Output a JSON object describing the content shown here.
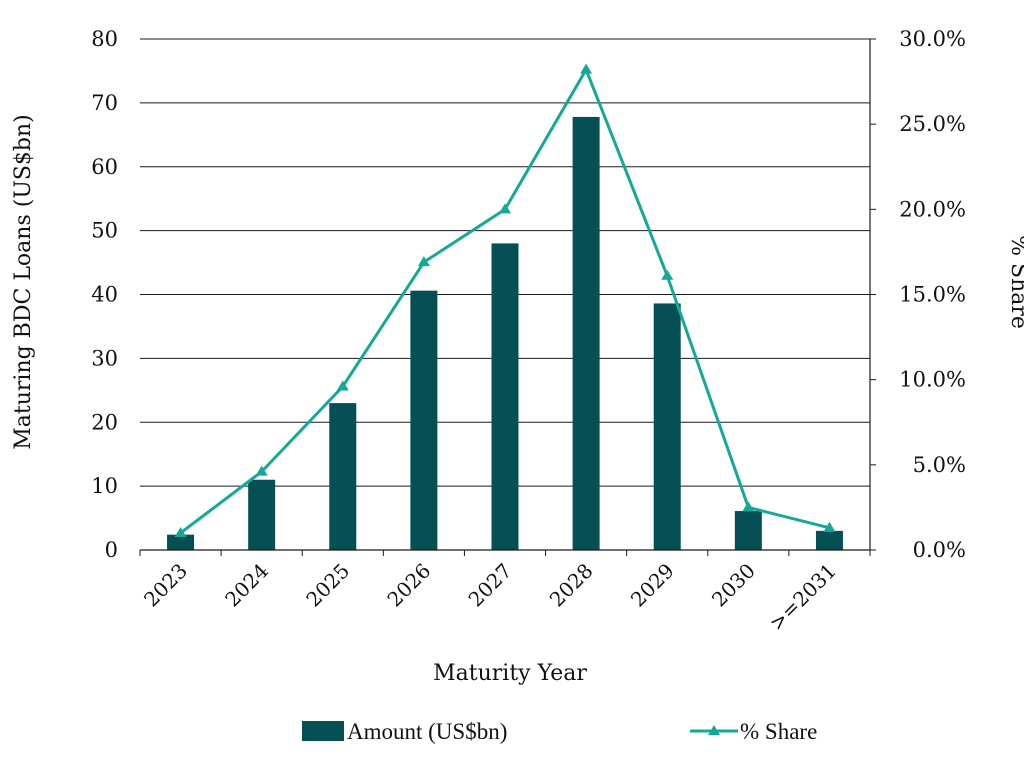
{
  "chart_data": {
    "type": "bar",
    "categories": [
      "2023",
      "2024",
      "2025",
      "2026",
      "2027",
      "2028",
      "2029",
      "2030",
      ">=2031"
    ],
    "series": [
      {
        "name": "Amount (US$bn)",
        "type": "bar",
        "axis": "left",
        "values": [
          2.4,
          11.0,
          23.0,
          40.6,
          48.0,
          67.8,
          38.6,
          6.1,
          3.0
        ]
      },
      {
        "name": "% Share",
        "type": "line",
        "axis": "right",
        "values": [
          1.0,
          4.6,
          9.6,
          16.9,
          20.0,
          28.2,
          16.1,
          2.5,
          1.3
        ]
      }
    ],
    "title": "",
    "xlabel": "Maturity Year",
    "ylabel": "Maturing BDC Loans (US$bn)",
    "y2label": "% Share",
    "ylim": [
      0,
      80
    ],
    "y2lim": [
      0,
      30
    ],
    "yticks": [
      "0",
      "10",
      "20",
      "30",
      "40",
      "50",
      "60",
      "70",
      "80"
    ],
    "y2ticks": [
      "0.0%",
      "5.0%",
      "10.0%",
      "15.0%",
      "20.0%",
      "25.0%",
      "30.0%"
    ],
    "grid": true,
    "legend_position": "bottom",
    "colors": {
      "bar": "#064f55",
      "line": "#14a996",
      "grid": "#1a1a1a",
      "axis": "#1a1a1a"
    }
  }
}
